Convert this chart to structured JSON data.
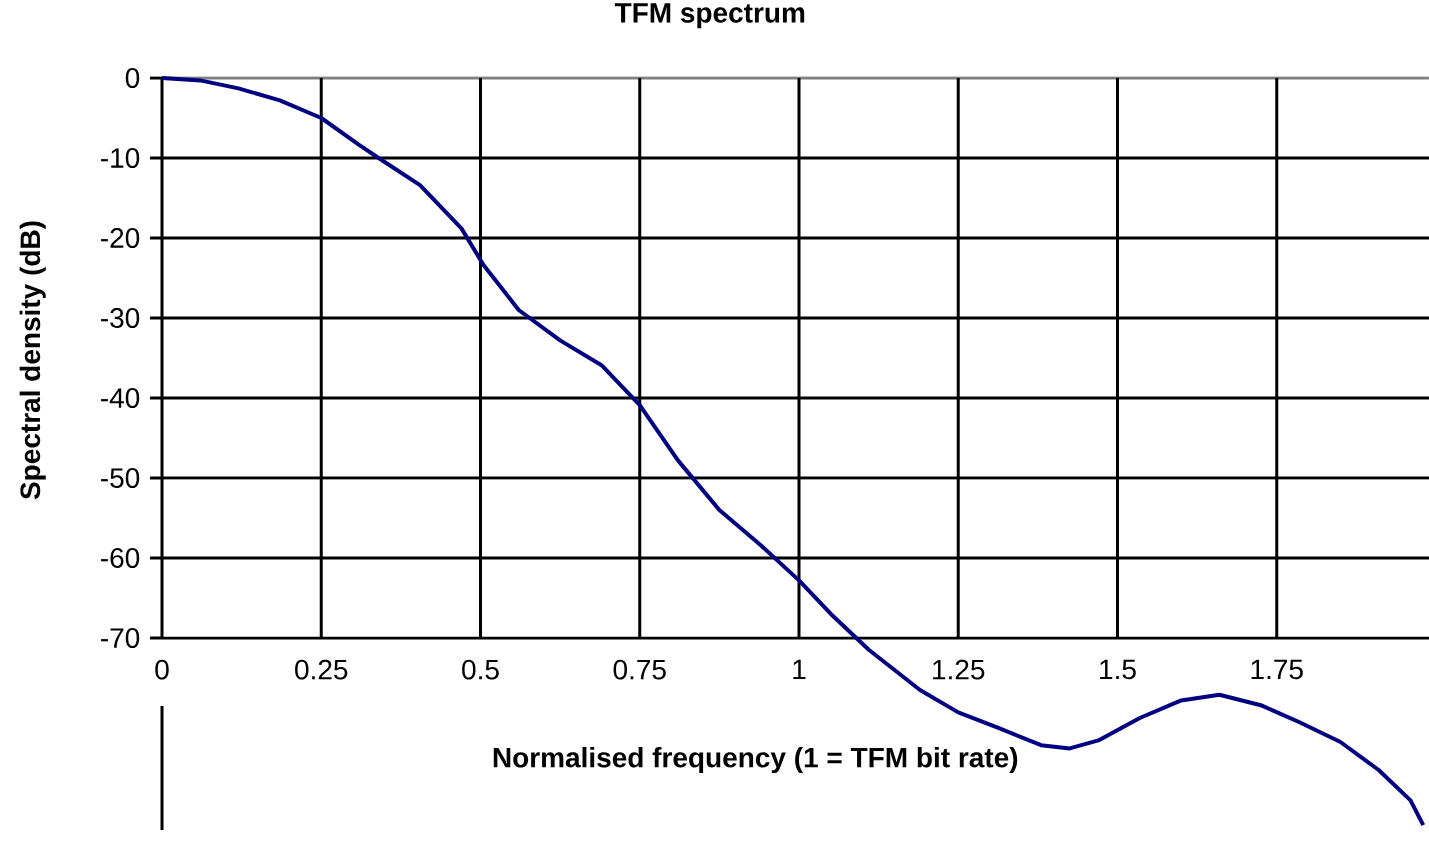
{
  "chart_data": {
    "type": "line",
    "title": "TFM spectrum",
    "xlabel": "Normalised frequency (1 = TFM bit rate)",
    "ylabel": "Spectral density (dB)",
    "x": [
      0,
      0.06,
      0.12,
      0.185,
      0.25,
      0.31,
      0.34,
      0.405,
      0.47,
      0.505,
      0.56,
      0.625,
      0.69,
      0.75,
      0.81,
      0.875,
      0.94,
      1.0,
      1.05,
      1.11,
      1.19,
      1.25,
      1.315,
      1.38,
      1.425,
      1.47,
      1.535,
      1.6,
      1.66,
      1.725,
      1.785,
      1.85,
      1.91,
      1.96,
      1.98
    ],
    "series": [
      {
        "color": "#000080",
        "values": [
          0,
          -0.3,
          -1.3,
          -2.8,
          -5,
          -8.4,
          -10,
          -13.4,
          -18.8,
          -23.4,
          -29,
          -32.8,
          -35.9,
          -40.9,
          -47.8,
          -54,
          -58.4,
          -62.8,
          -67,
          -71.5,
          -76.5,
          -79.3,
          -81.3,
          -83.4,
          -83.8,
          -82.8,
          -80,
          -77.8,
          -77.1,
          -78.4,
          -80.5,
          -83,
          -86.5,
          -90.3,
          -93.4
        ]
      }
    ],
    "xlim": [
      0,
      1.99
    ],
    "ylim": [
      -94,
      0
    ],
    "xticks": [
      0,
      0.25,
      0.5,
      0.75,
      1,
      1.25,
      1.5,
      1.75
    ],
    "yticks": [
      -70,
      -60,
      -50,
      -40,
      -30,
      -20,
      -10,
      0
    ],
    "grid": true,
    "marker": "none",
    "line_style": "solid"
  }
}
